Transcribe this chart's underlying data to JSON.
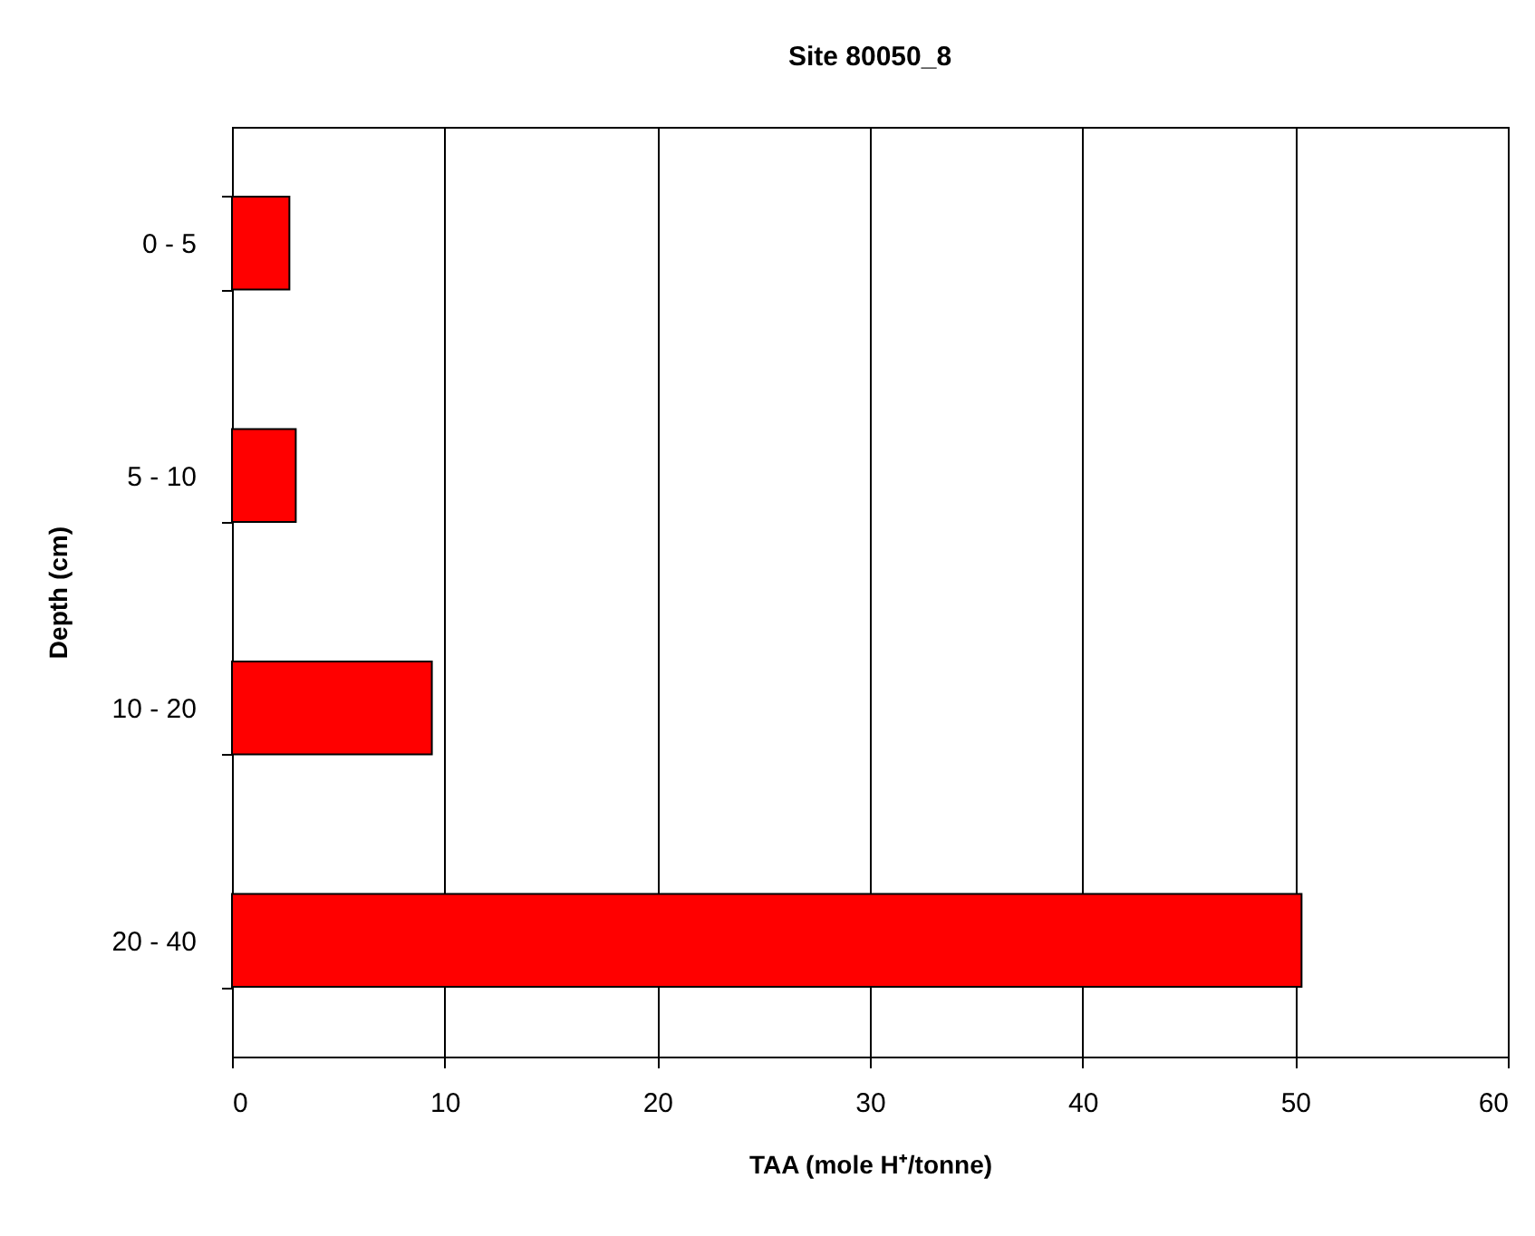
{
  "chart_data": {
    "type": "bar",
    "orientation": "horizontal",
    "title": "Site 80050_8",
    "xlabel": "TAA (mole H⁺/tonne)",
    "ylabel": "Depth (cm)",
    "categories": [
      "0 - 5",
      "5 - 10",
      "10 - 20",
      "20 - 40"
    ],
    "values": [
      2.7,
      3.0,
      9.4,
      50.3
    ],
    "color": "#ff0000",
    "xlim": [
      0,
      60
    ],
    "xticks": [
      0,
      10,
      20,
      30,
      40,
      50,
      60
    ],
    "grid": "x"
  }
}
